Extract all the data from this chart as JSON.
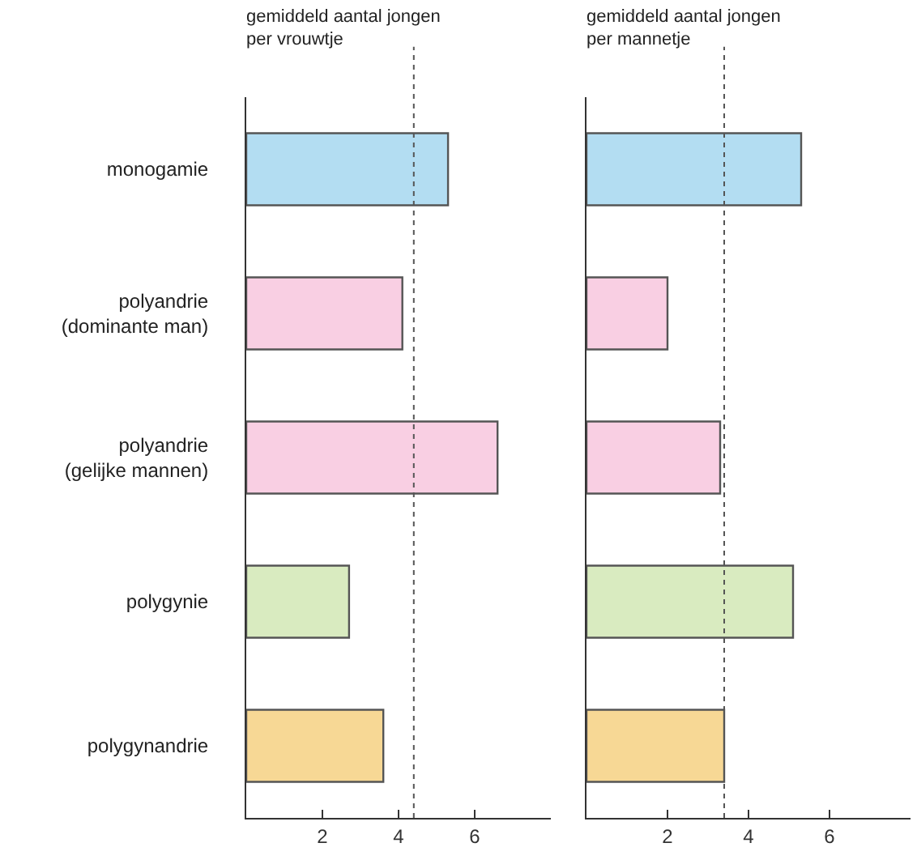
{
  "chart_data": [
    {
      "type": "bar",
      "orientation": "horizontal",
      "title": "gemiddeld aantal jongen\nper vrouwtje",
      "categories": [
        "monogamie",
        "polyandrie\n(dominante man)",
        "polyandrie\n(gelijke mannen)",
        "polygynie",
        "polygynandrie"
      ],
      "values": [
        5.3,
        4.1,
        6.6,
        2.7,
        3.6
      ],
      "colors": [
        "#b3ddf2",
        "#f9cfe3",
        "#f9cfe3",
        "#d9ebc0",
        "#f7d895"
      ],
      "xlim": [
        0,
        8
      ],
      "xticks": [
        2,
        4,
        6
      ],
      "grid": false,
      "ref_lines": [
        {
          "axis": "x",
          "value": 4.4,
          "line_style": "dotted",
          "color": "#555555"
        }
      ]
    },
    {
      "type": "bar",
      "orientation": "horizontal",
      "title": "gemiddeld aantal jongen\nper mannetje",
      "categories": [
        null,
        null,
        null,
        null,
        null
      ],
      "values": [
        5.3,
        2.0,
        3.3,
        5.1,
        3.4
      ],
      "colors": [
        "#b3ddf2",
        "#f9cfe3",
        "#f9cfe3",
        "#d9ebc0",
        "#f7d895"
      ],
      "xlim": [
        0,
        8
      ],
      "xticks": [
        2,
        4,
        6
      ],
      "grid": false,
      "tick_labels": "x",
      "ref_lines": [
        {
          "axis": "x",
          "value": 3.4,
          "line_style": "dotted",
          "color": "#555555"
        }
      ]
    }
  ]
}
